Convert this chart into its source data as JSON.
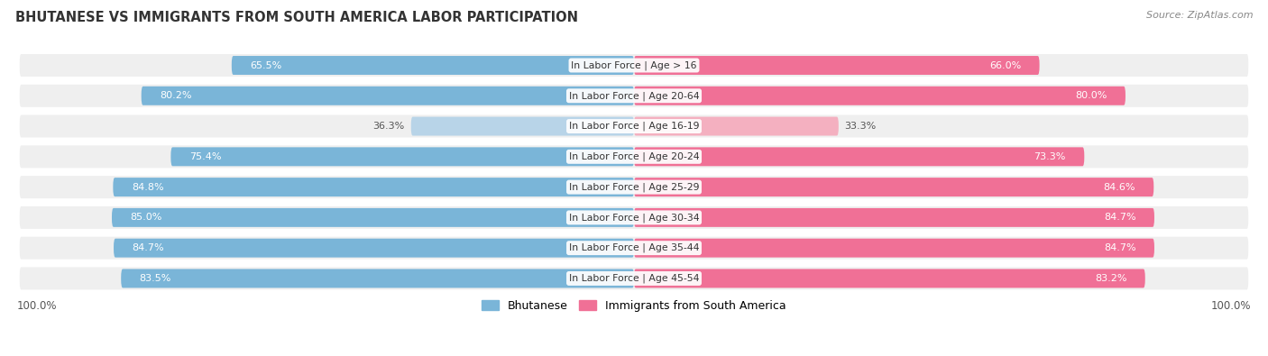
{
  "title": "BHUTANESE VS IMMIGRANTS FROM SOUTH AMERICA LABOR PARTICIPATION",
  "source": "Source: ZipAtlas.com",
  "categories": [
    "In Labor Force | Age > 16",
    "In Labor Force | Age 20-64",
    "In Labor Force | Age 16-19",
    "In Labor Force | Age 20-24",
    "In Labor Force | Age 25-29",
    "In Labor Force | Age 30-34",
    "In Labor Force | Age 35-44",
    "In Labor Force | Age 45-54"
  ],
  "bhutanese": [
    65.5,
    80.2,
    36.3,
    75.4,
    84.8,
    85.0,
    84.7,
    83.5
  ],
  "immigrants": [
    66.0,
    80.0,
    33.3,
    73.3,
    84.6,
    84.7,
    84.7,
    83.2
  ],
  "bhutanese_color": "#7ab5d8",
  "bhutanese_color_light": "#b8d4e8",
  "immigrants_color": "#f07096",
  "immigrants_color_light": "#f4b0c0",
  "row_bg_color": "#efefef",
  "bar_height": 0.62,
  "max_val": 100.0,
  "legend_bhutanese": "Bhutanese",
  "legend_immigrants": "Immigrants from South America",
  "bottom_label": "100.0%",
  "title_fontsize": 10.5,
  "label_fontsize": 8.0,
  "value_fontsize": 8.0,
  "cat_fontsize": 7.8
}
